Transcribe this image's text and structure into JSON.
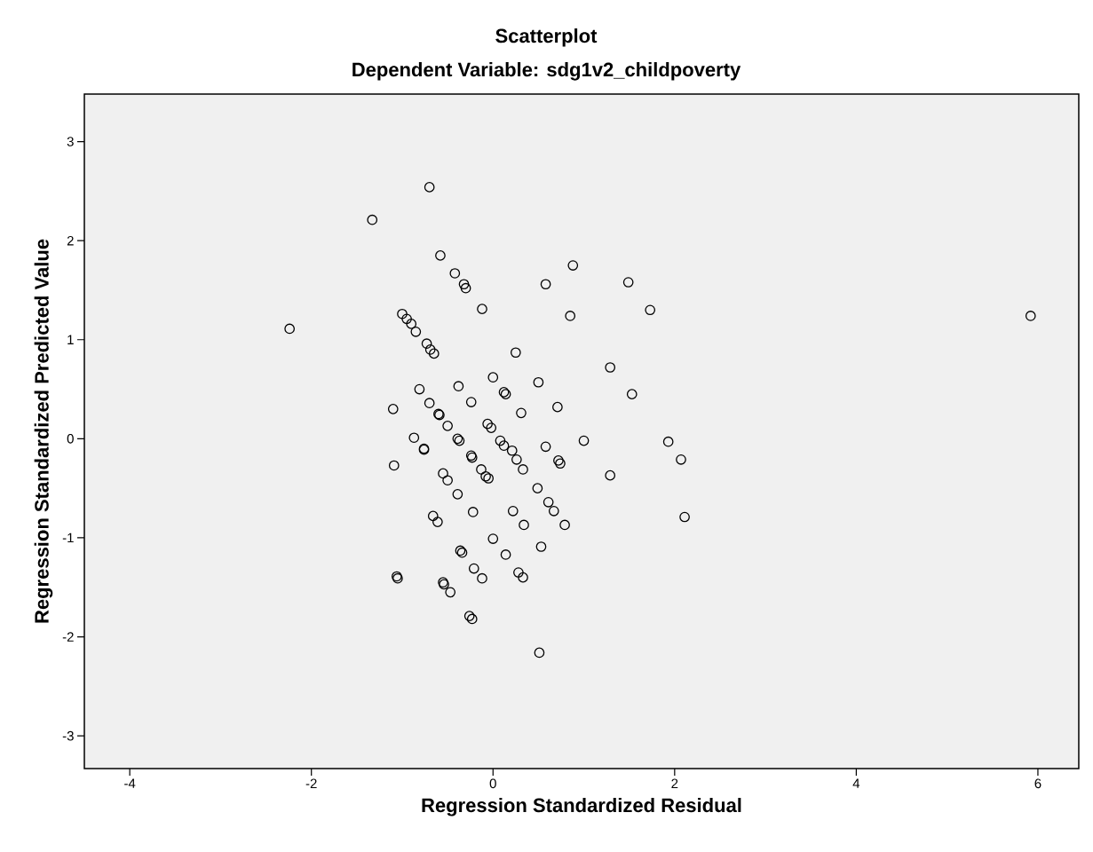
{
  "chart_data": {
    "type": "scatter",
    "title": "Scatterplot",
    "subtitle": "Dependent Variable: sdg1v2_childpoverty",
    "xlabel": "Regression Standardized Residual",
    "ylabel": "Regression Standardized Predicted Value",
    "xlim": [
      -4.5,
      6.45
    ],
    "ylim": [
      -3.33,
      3.48
    ],
    "xticks": [
      -4,
      -2,
      0,
      2,
      4,
      6
    ],
    "yticks": [
      -3,
      -2,
      -1,
      0,
      1,
      2,
      3
    ],
    "marker": "circle",
    "grid": false,
    "series": [
      {
        "color": "#000000",
        "x": [
          -0.7,
          -1.33,
          -0.58,
          -0.42,
          -0.32,
          -0.3,
          -0.12,
          -2.24,
          -1.0,
          -0.95,
          -0.9,
          -0.85,
          -0.73,
          -0.69,
          -0.65,
          0.58,
          0.88,
          0.85,
          1.49,
          1.73,
          5.92,
          0.25,
          1.29,
          0.5,
          0.0,
          1.53,
          0.12,
          0.14,
          -0.38,
          -0.81,
          -0.24,
          -0.7,
          -1.1,
          -0.6,
          -0.59,
          0.71,
          0.31,
          -0.5,
          -0.06,
          -0.02,
          -0.87,
          -0.39,
          -0.37,
          0.08,
          0.12,
          1.0,
          1.93,
          -0.76,
          -0.76,
          0.21,
          0.26,
          -0.24,
          -0.23,
          0.33,
          0.58,
          -1.09,
          -0.13,
          -0.08,
          -0.05,
          0.72,
          0.74,
          1.29,
          2.07,
          -0.55,
          -0.5,
          -0.39,
          0.49,
          0.61,
          0.67,
          0.79,
          0.34,
          0.22,
          -0.22,
          -0.66,
          -0.61,
          0.0,
          0.53,
          0.14,
          -0.36,
          -0.34,
          -0.21,
          -0.12,
          0.28,
          0.33,
          -1.06,
          -1.05,
          -0.55,
          -0.54,
          -0.47,
          -0.26,
          -0.23,
          0.51,
          2.11
        ],
        "values": [
          2.54,
          2.21,
          1.85,
          1.67,
          1.56,
          1.52,
          1.31,
          1.11,
          1.26,
          1.21,
          1.16,
          1.08,
          0.96,
          0.9,
          0.86,
          1.56,
          1.75,
          1.24,
          1.58,
          1.3,
          1.24,
          0.87,
          0.72,
          0.57,
          0.62,
          0.45,
          0.47,
          0.45,
          0.53,
          0.5,
          0.37,
          0.36,
          0.3,
          0.25,
          0.24,
          0.32,
          0.26,
          0.13,
          0.15,
          0.11,
          0.01,
          0.0,
          -0.02,
          -0.02,
          -0.07,
          -0.02,
          -0.03,
          -0.1,
          -0.11,
          -0.12,
          -0.21,
          -0.17,
          -0.19,
          -0.31,
          -0.08,
          -0.27,
          -0.31,
          -0.38,
          -0.4,
          -0.22,
          -0.25,
          -0.37,
          -0.21,
          -0.35,
          -0.42,
          -0.56,
          -0.5,
          -0.64,
          -0.73,
          -0.87,
          -0.87,
          -0.73,
          -0.74,
          -0.78,
          -0.84,
          -1.01,
          -1.09,
          -1.17,
          -1.13,
          -1.15,
          -1.31,
          -1.41,
          -1.35,
          -1.4,
          -1.39,
          -1.41,
          -1.45,
          -1.47,
          -1.55,
          -1.79,
          -1.82,
          -2.16,
          -0.79
        ]
      }
    ]
  }
}
